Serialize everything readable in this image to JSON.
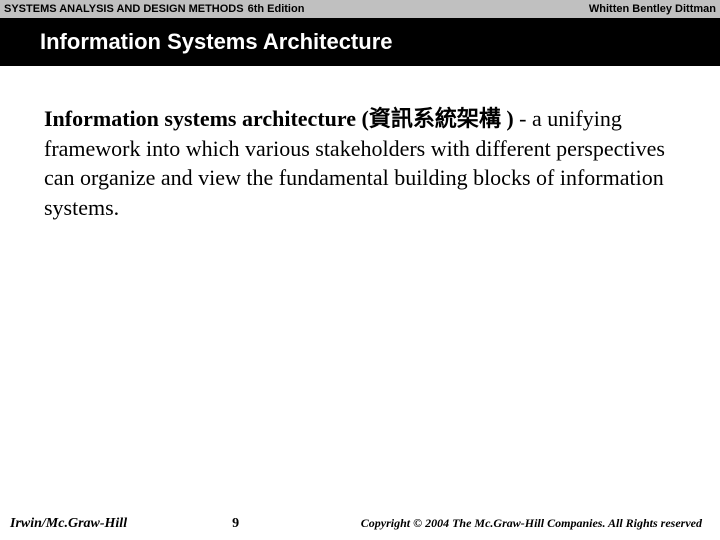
{
  "header": {
    "title_main": "SYSTEMS ANALYSIS AND DESIGN METHODS",
    "title_edition": "6th Edition",
    "authors": "Whitten   Bentley   Dittman"
  },
  "titlebar": {
    "text": "Information Systems Architecture"
  },
  "content": {
    "bold_term": "Information systems architecture (資訊系統架構   )",
    "definition": " - a unifying framework into which various stakeholders with different perspectives can organize and view the fundamental building blocks of information systems."
  },
  "footer": {
    "publisher": "Irwin/Mc.Graw-Hill",
    "page_number": "9",
    "copyright": "Copyright © 2004 The Mc.Graw-Hill Companies. All Rights reserved"
  },
  "colors": {
    "header_bg": "#c0c0c0",
    "titlebar_bg": "#000000",
    "titlebar_text": "#ffffff",
    "body_bg": "#ffffff",
    "text_color": "#000000"
  }
}
